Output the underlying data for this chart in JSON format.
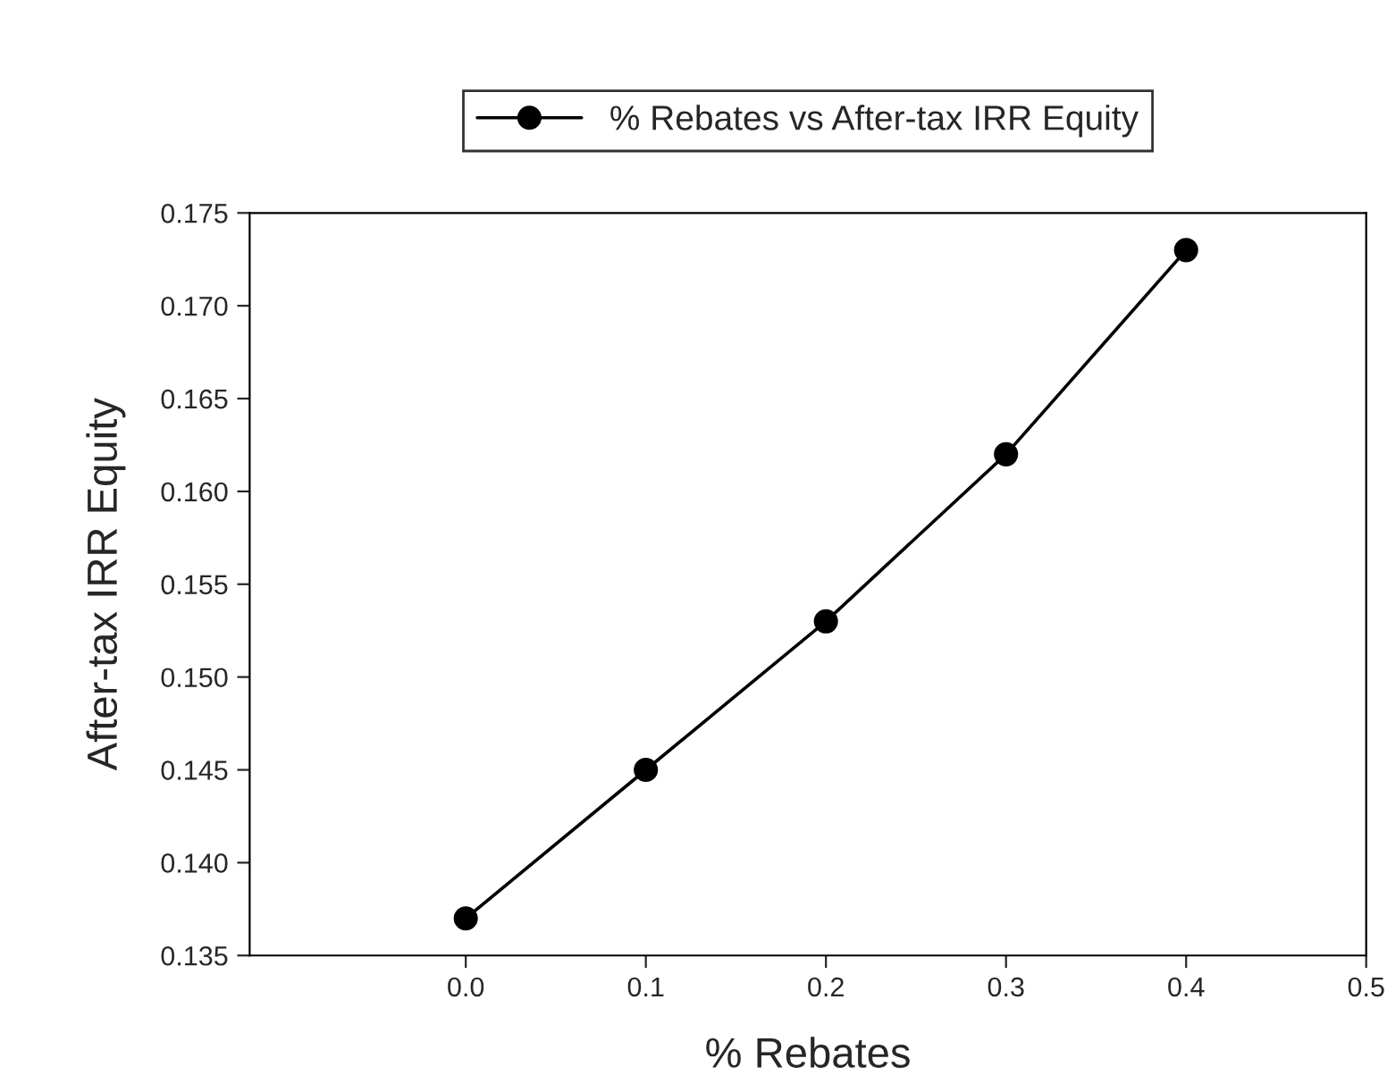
{
  "chart_data": {
    "type": "line",
    "xlabel": "% Rebates",
    "ylabel": "After-tax IRR Equity",
    "x": [
      0.0,
      0.1,
      0.2,
      0.3,
      0.4
    ],
    "series": [
      {
        "name": "% Rebates vs After-tax IRR Equity",
        "color": "#000000",
        "values": [
          0.137,
          0.145,
          0.153,
          0.162,
          0.173
        ]
      }
    ],
    "xlim": [
      -0.12,
      0.5
    ],
    "xticks": [
      {
        "value": 0.0,
        "label": "0.0"
      },
      {
        "value": 0.1,
        "label": "0.1"
      },
      {
        "value": 0.2,
        "label": "0.2"
      },
      {
        "value": 0.3,
        "label": "0.3"
      },
      {
        "value": 0.4,
        "label": "0.4"
      },
      {
        "value": 0.5,
        "label": "0.5"
      }
    ],
    "ylim": [
      0.135,
      0.175
    ],
    "yticks": [
      {
        "value": 0.135,
        "label": "0.135"
      },
      {
        "value": 0.14,
        "label": "0.140"
      },
      {
        "value": 0.145,
        "label": "0.145"
      },
      {
        "value": 0.15,
        "label": "0.150"
      },
      {
        "value": 0.155,
        "label": "0.155"
      },
      {
        "value": 0.16,
        "label": "0.160"
      },
      {
        "value": 0.165,
        "label": "0.165"
      },
      {
        "value": 0.17,
        "label": "0.170"
      },
      {
        "value": 0.175,
        "label": "0.175"
      }
    ],
    "legend": "top",
    "marker": "circle",
    "line_style": "solid",
    "grid": false
  }
}
